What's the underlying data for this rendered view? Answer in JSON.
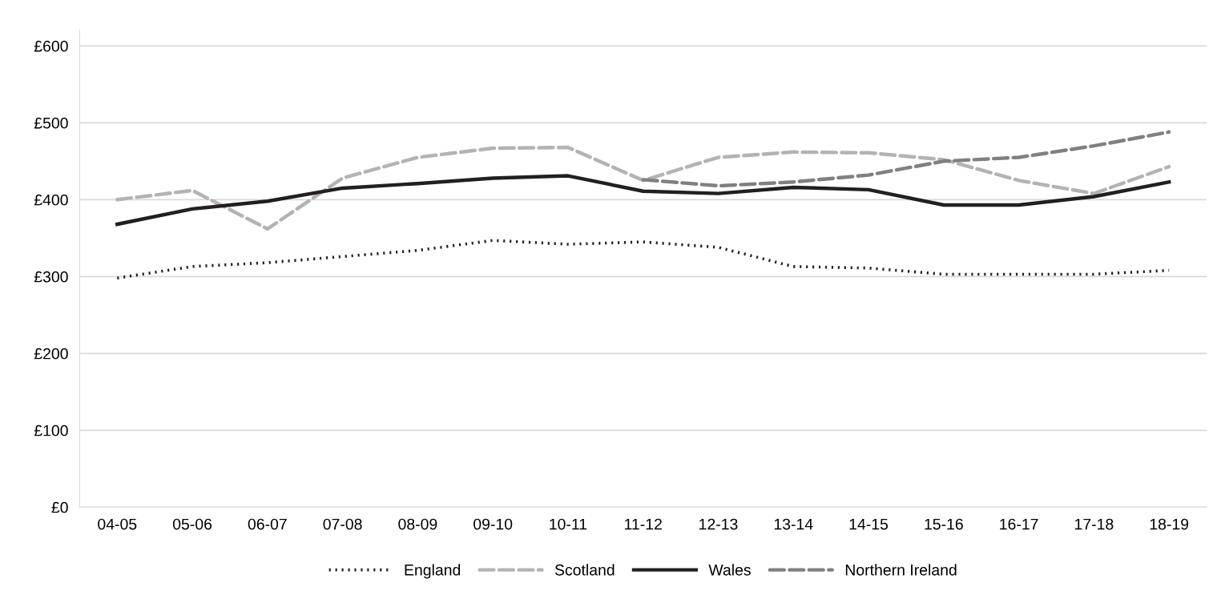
{
  "chart_data": {
    "type": "line",
    "categories": [
      "04-05",
      "05-06",
      "06-07",
      "07-08",
      "08-09",
      "09-10",
      "10-11",
      "11-12",
      "12-13",
      "13-14",
      "14-15",
      "15-16",
      "16-17",
      "17-18",
      "18-19"
    ],
    "series": [
      {
        "name": "England",
        "color": "#231f20",
        "line_style": "dotted",
        "values": [
          298,
          313,
          318,
          326,
          334,
          347,
          342,
          345,
          338,
          313,
          311,
          303,
          303,
          303,
          308
        ]
      },
      {
        "name": "Scotland",
        "color": "#b3b3b5",
        "line_style": "dashed",
        "values": [
          400,
          412,
          362,
          428,
          455,
          467,
          468,
          425,
          455,
          462,
          461,
          452,
          425,
          408,
          443
        ]
      },
      {
        "name": "Wales",
        "color": "#231f20",
        "line_style": "solid",
        "values": [
          368,
          388,
          398,
          415,
          421,
          428,
          431,
          411,
          408,
          416,
          413,
          393,
          393,
          404,
          423
        ]
      },
      {
        "name": "Northern Ireland",
        "color": "#808080",
        "line_style": "dashed",
        "values": [
          null,
          null,
          null,
          null,
          null,
          null,
          null,
          426,
          418,
          423,
          432,
          450,
          455,
          470,
          488
        ]
      }
    ],
    "ylim": [
      0,
      620
    ],
    "yticks": [
      {
        "value": 0,
        "label": "£0"
      },
      {
        "value": 100,
        "label": "£100"
      },
      {
        "value": 200,
        "label": "£200"
      },
      {
        "value": 300,
        "label": "£300"
      },
      {
        "value": 400,
        "label": "£400"
      },
      {
        "value": 500,
        "label": "£500"
      },
      {
        "value": 600,
        "label": "£600"
      }
    ],
    "grid": "y",
    "legend": "bottom",
    "marker": "none"
  }
}
